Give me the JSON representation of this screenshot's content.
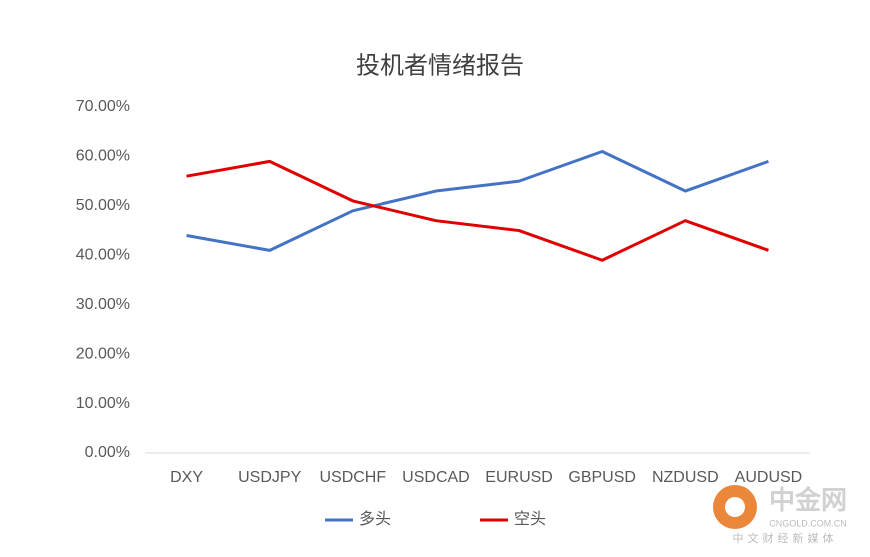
{
  "chart_data": {
    "type": "line",
    "title": "投机者情绪报告",
    "categories": [
      "DXY",
      "USDJPY",
      "USDCHF",
      "USDCAD",
      "EURUSD",
      "GBPUSD",
      "NZDUSD",
      "AUDUSD"
    ],
    "series": [
      {
        "name": "多头",
        "color": "#4472c4",
        "values": [
          44,
          41,
          49,
          53,
          55,
          61,
          53,
          59
        ]
      },
      {
        "name": "空头",
        "color": "#e00000",
        "values": [
          56,
          59,
          51,
          47,
          45,
          39,
          47,
          41
        ]
      }
    ],
    "ylim": [
      0,
      70
    ],
    "yticks": [
      {
        "value": 0,
        "label": "0.00%"
      },
      {
        "value": 10,
        "label": "10.00%"
      },
      {
        "value": 20,
        "label": "20.00%"
      },
      {
        "value": 30,
        "label": "30.00%"
      },
      {
        "value": 40,
        "label": "40.00%"
      },
      {
        "value": 50,
        "label": "50.00%"
      },
      {
        "value": 60,
        "label": "60.00%"
      },
      {
        "value": 70,
        "label": "70.00%"
      }
    ],
    "grid": false,
    "legend": "bottom"
  },
  "watermark": {
    "name": "中金网",
    "site": "CNGOLD.COM.CN",
    "slogan": "中文财经新媒体"
  }
}
